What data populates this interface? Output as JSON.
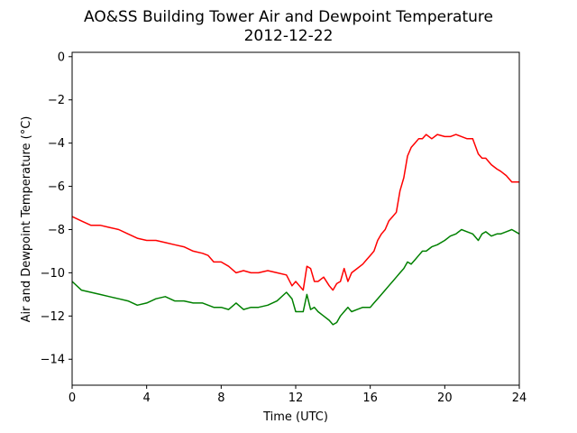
{
  "chart_data": {
    "type": "line",
    "title": "AO&SS Building Tower Air and Dewpoint Temperature",
    "subtitle": "2012-12-22",
    "xlabel": "Time (UTC)",
    "ylabel": "Air and Dewpoint Temperature (°C)",
    "xlim": [
      0,
      24
    ],
    "ylim": [
      -15.2,
      0.2
    ],
    "x_ticks": [
      0,
      4,
      8,
      12,
      16,
      20,
      24
    ],
    "y_ticks": [
      0,
      -2,
      -4,
      -6,
      -8,
      -10,
      -12,
      -14
    ],
    "x_tick_labels": [
      "0",
      "4",
      "8",
      "12",
      "16",
      "20",
      "24"
    ],
    "y_tick_labels": [
      "0",
      "−2",
      "−4",
      "−6",
      "−8",
      "−10",
      "−12",
      "−14"
    ],
    "grid": false,
    "legend": "none",
    "series": [
      {
        "color": "#ff0000",
        "x": [
          0,
          0.5,
          1,
          1.5,
          2,
          2.5,
          3,
          3.5,
          4,
          4.5,
          5,
          5.5,
          6,
          6.5,
          7,
          7.3,
          7.6,
          8,
          8.4,
          8.8,
          9.2,
          9.6,
          10,
          10.5,
          11,
          11.5,
          11.8,
          12,
          12.2,
          12.4,
          12.6,
          12.8,
          13.0,
          13.2,
          13.5,
          13.8,
          14.0,
          14.2,
          14.4,
          14.6,
          14.8,
          15.0,
          15.3,
          15.6,
          15.8,
          16.0,
          16.2,
          16.4,
          16.6,
          16.8,
          17.0,
          17.2,
          17.4,
          17.6,
          17.8,
          18.0,
          18.2,
          18.4,
          18.6,
          18.8,
          19.0,
          19.3,
          19.6,
          20.0,
          20.3,
          20.6,
          20.9,
          21.2,
          21.5,
          21.8,
          22.0,
          22.2,
          22.5,
          22.8,
          23.0,
          23.3,
          23.6,
          24.0
        ],
        "y": [
          -7.4,
          -7.6,
          -7.8,
          -7.8,
          -7.9,
          -8.0,
          -8.2,
          -8.4,
          -8.5,
          -8.5,
          -8.6,
          -8.7,
          -8.8,
          -9.0,
          -9.1,
          -9.2,
          -9.5,
          -9.5,
          -9.7,
          -10.0,
          -9.9,
          -10.0,
          -10.0,
          -9.9,
          -10.0,
          -10.1,
          -10.6,
          -10.4,
          -10.6,
          -10.8,
          -9.7,
          -9.8,
          -10.4,
          -10.4,
          -10.2,
          -10.6,
          -10.8,
          -10.5,
          -10.4,
          -9.8,
          -10.4,
          -10.0,
          -9.8,
          -9.6,
          -9.4,
          -9.2,
          -9.0,
          -8.5,
          -8.2,
          -8.0,
          -7.6,
          -7.4,
          -7.2,
          -6.2,
          -5.6,
          -4.6,
          -4.2,
          -4.0,
          -3.8,
          -3.8,
          -3.6,
          -3.8,
          -3.6,
          -3.7,
          -3.7,
          -3.6,
          -3.7,
          -3.8,
          -3.8,
          -4.5,
          -4.7,
          -4.7,
          -5.0,
          -5.2,
          -5.3,
          -5.5,
          -5.8,
          -5.8
        ]
      },
      {
        "color": "#008000",
        "x": [
          0,
          0.5,
          1,
          1.5,
          2,
          2.5,
          3,
          3.5,
          4,
          4.5,
          5,
          5.5,
          6,
          6.5,
          7,
          7.3,
          7.6,
          8,
          8.4,
          8.8,
          9.2,
          9.6,
          10,
          10.5,
          11,
          11.5,
          11.8,
          12,
          12.2,
          12.4,
          12.6,
          12.8,
          13.0,
          13.2,
          13.5,
          13.8,
          14.0,
          14.2,
          14.4,
          14.6,
          14.8,
          15.0,
          15.3,
          15.6,
          15.8,
          16.0,
          16.2,
          16.4,
          16.6,
          16.8,
          17.0,
          17.2,
          17.4,
          17.6,
          17.8,
          18.0,
          18.2,
          18.4,
          18.6,
          18.8,
          19.0,
          19.3,
          19.6,
          20.0,
          20.3,
          20.6,
          20.9,
          21.2,
          21.5,
          21.8,
          22.0,
          22.2,
          22.5,
          22.8,
          23.0,
          23.3,
          23.6,
          24.0
        ],
        "y": [
          -10.4,
          -10.8,
          -10.9,
          -11.0,
          -11.1,
          -11.2,
          -11.3,
          -11.5,
          -11.4,
          -11.2,
          -11.1,
          -11.3,
          -11.3,
          -11.4,
          -11.4,
          -11.5,
          -11.6,
          -11.6,
          -11.7,
          -11.4,
          -11.7,
          -11.6,
          -11.6,
          -11.5,
          -11.3,
          -10.9,
          -11.2,
          -11.8,
          -11.8,
          -11.8,
          -11.0,
          -11.7,
          -11.6,
          -11.8,
          -12.0,
          -12.2,
          -12.4,
          -12.3,
          -12.0,
          -11.8,
          -11.6,
          -11.8,
          -11.7,
          -11.6,
          -11.6,
          -11.6,
          -11.4,
          -11.2,
          -11.0,
          -10.8,
          -10.6,
          -10.4,
          -10.2,
          -10.0,
          -9.8,
          -9.5,
          -9.6,
          -9.4,
          -9.2,
          -9.0,
          -9.0,
          -8.8,
          -8.7,
          -8.5,
          -8.3,
          -8.2,
          -8.0,
          -8.1,
          -8.2,
          -8.5,
          -8.2,
          -8.1,
          -8.3,
          -8.2,
          -8.2,
          -8.1,
          -8.0,
          -8.2
        ]
      }
    ]
  }
}
